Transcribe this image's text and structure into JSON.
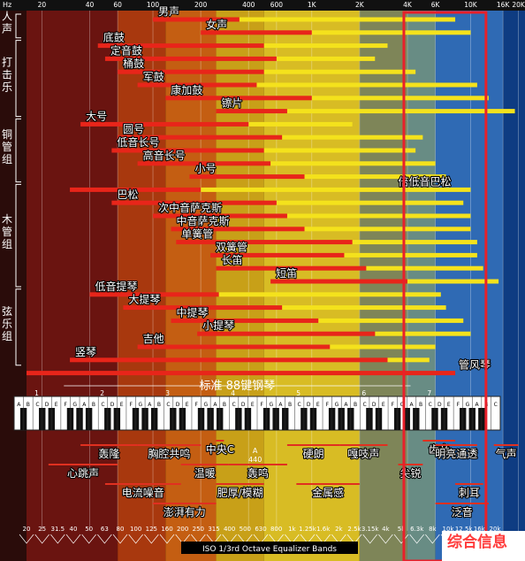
{
  "watermark": "综合信息",
  "chart_data": {
    "type": "range-bar",
    "unit_label": "Hz",
    "x_scale": "log",
    "xlim": [
      16,
      22000
    ],
    "top_ticks": [
      {
        "label": "20",
        "value": 20
      },
      {
        "label": "40",
        "value": 40
      },
      {
        "label": "60",
        "value": 60
      },
      {
        "label": "100",
        "value": 100
      },
      {
        "label": "200",
        "value": 200
      },
      {
        "label": "400",
        "value": 400
      },
      {
        "label": "600",
        "value": 600
      },
      {
        "label": "1K",
        "value": 1000
      },
      {
        "label": "2K",
        "value": 2000
      },
      {
        "label": "4K",
        "value": 4000
      },
      {
        "label": "6K",
        "value": 6000
      },
      {
        "label": "10K",
        "value": 10000
      },
      {
        "label": "16K",
        "value": 16000
      },
      {
        "label": "20K",
        "value": 20000
      }
    ],
    "bands": [
      {
        "from": 16,
        "to": 60,
        "color": "#6a1410"
      },
      {
        "from": 60,
        "to": 120,
        "color": "#a8380e"
      },
      {
        "from": 120,
        "to": 250,
        "color": "#c45e12"
      },
      {
        "from": 250,
        "to": 500,
        "color": "#c8a018"
      },
      {
        "from": 500,
        "to": 2000,
        "color": "#d8bc24"
      },
      {
        "from": 2000,
        "to": 4000,
        "color": "#7e8558"
      },
      {
        "from": 4000,
        "to": 6000,
        "color": "#688c84"
      },
      {
        "from": 6000,
        "to": 16000,
        "color": "#2f6ab4"
      },
      {
        "from": 16000,
        "to": 22000,
        "color": "#0e3c82"
      }
    ],
    "groups": [
      {
        "label": "人声",
        "row_from": 0,
        "row_to": 1
      },
      {
        "label": "打击乐",
        "row_from": 2,
        "row_to": 7
      },
      {
        "label": "铜管组",
        "row_from": 8,
        "row_to": 12
      },
      {
        "label": "木管组",
        "row_from": 13,
        "row_to": 20
      },
      {
        "label": "弦乐组",
        "row_from": 21,
        "row_to": 26
      }
    ],
    "series": [
      {
        "label": "男声",
        "low": 100,
        "fund_high": 350,
        "harm_high": 8000
      },
      {
        "label": "女声",
        "low": 200,
        "fund_high": 1000,
        "harm_high": 10000
      },
      {
        "label": "底鼓",
        "low": 45,
        "fund_high": 500,
        "harm_high": 3000
      },
      {
        "label": "定音鼓",
        "low": 50,
        "fund_high": 600,
        "harm_high": 2500
      },
      {
        "label": "桶鼓",
        "low": 60,
        "fund_high": 500,
        "harm_high": 4500
      },
      {
        "label": "军鼓",
        "low": 80,
        "fund_high": 450,
        "harm_high": 11000
      },
      {
        "label": "康加鼓",
        "low": 120,
        "fund_high": 1000,
        "harm_high": 13000
      },
      {
        "label": "镲片",
        "low": 250,
        "fund_high": 700,
        "harm_high": 19000
      },
      {
        "label": "大号",
        "low": 35,
        "fund_high": 400,
        "harm_high": 1800
      },
      {
        "label": "圆号",
        "low": 60,
        "fund_high": 650,
        "harm_high": 5000
      },
      {
        "label": "低音长号",
        "low": 55,
        "fund_high": 500,
        "harm_high": 4500
      },
      {
        "label": "高音长号",
        "low": 80,
        "fund_high": 550,
        "harm_high": 6000
      },
      {
        "label": "小号",
        "low": 170,
        "fund_high": 900,
        "harm_high": 7000
      },
      {
        "label": "倍低音巴松",
        "low": 30,
        "fund_high": 200,
        "harm_high": 10000
      },
      {
        "label": "巴松",
        "low": 55,
        "fund_high": 600,
        "harm_high": 9000
      },
      {
        "label": "次中音萨克斯",
        "low": 100,
        "fund_high": 700,
        "harm_high": 10000
      },
      {
        "label": "中音萨克斯",
        "low": 130,
        "fund_high": 900,
        "harm_high": 10000
      },
      {
        "label": "单簧管",
        "low": 140,
        "fund_high": 1800,
        "harm_high": 11000
      },
      {
        "label": "双簧管",
        "low": 230,
        "fund_high": 1600,
        "harm_high": 11000
      },
      {
        "label": "长笛",
        "low": 250,
        "fund_high": 2200,
        "harm_high": 12000
      },
      {
        "label": "短笛",
        "low": 550,
        "fund_high": 4000,
        "harm_high": 15000
      },
      {
        "label": "低音提琴",
        "low": 40,
        "fund_high": 260,
        "harm_high": 6500
      },
      {
        "label": "大提琴",
        "low": 65,
        "fund_high": 650,
        "harm_high": 7000
      },
      {
        "label": "中提琴",
        "low": 130,
        "fund_high": 1100,
        "harm_high": 9000
      },
      {
        "label": "小提琴",
        "low": 190,
        "fund_high": 2500,
        "harm_high": 10000
      },
      {
        "label": "吉他",
        "low": 80,
        "fund_high": 1300,
        "harm_high": 6000
      },
      {
        "label": "竖琴",
        "low": 30,
        "fund_high": 3000,
        "harm_high": 5500
      },
      {
        "label": "管风琴",
        "low": 16,
        "fund_high": 8000,
        "harm_high": 8000
      }
    ],
    "piano": {
      "title": "标准 88键钢琴",
      "low": 27.5,
      "high": 4186,
      "octave_numbers": [
        "1",
        "2",
        "3",
        "4",
        "5",
        "6",
        "7"
      ],
      "key_letters": [
        "C",
        "D",
        "E",
        "F",
        "G",
        "A",
        "B"
      ],
      "middle_c_label": "中央C",
      "a440_label_top": "A",
      "a440_label_bottom": "440"
    },
    "characteristics": [
      {
        "label": "轰隆",
        "from": 35,
        "to": 80,
        "level": 0
      },
      {
        "label": "心跳声",
        "from": 22,
        "to": 60,
        "level": 1
      },
      {
        "label": "胸腔共鸣",
        "from": 80,
        "to": 200,
        "level": 0
      },
      {
        "label": "电流噪音",
        "from": 50,
        "to": 150,
        "level": 2
      },
      {
        "label": "温暖",
        "from": 150,
        "to": 300,
        "level": 1
      },
      {
        "label": "澎湃有力",
        "from": 100,
        "to": 250,
        "level": 3
      },
      {
        "label": "中央C",
        "from": 250,
        "to": 280,
        "level": -1
      },
      {
        "label": "肥厚/模糊",
        "from": 250,
        "to": 500,
        "level": 2
      },
      {
        "label": "轰鸣",
        "from": 300,
        "to": 700,
        "level": 1
      },
      {
        "label": "硬朗",
        "from": 700,
        "to": 1500,
        "level": 0
      },
      {
        "label": "金属感",
        "from": 800,
        "to": 2000,
        "level": 2
      },
      {
        "label": "嘎吱声",
        "from": 1500,
        "to": 3000,
        "level": 0
      },
      {
        "label": "尖锐",
        "from": 3500,
        "to": 5000,
        "level": 1
      },
      {
        "label": "齿音",
        "from": 5000,
        "to": 8000,
        "level": -1
      },
      {
        "label": "明亮通透",
        "from": 6000,
        "to": 11000,
        "level": 0
      },
      {
        "label": "刺耳",
        "from": 8000,
        "to": 12000,
        "level": 2
      },
      {
        "label": "泛音",
        "from": 6000,
        "to": 13000,
        "level": 3
      },
      {
        "label": "气声",
        "from": 14000,
        "to": 20000,
        "level": 0
      }
    ],
    "iso_bands": [
      "20",
      "25",
      "31.5",
      "40",
      "50",
      "63",
      "80",
      "100",
      "125",
      "160",
      "200",
      "250",
      "315",
      "400",
      "500",
      "630",
      "800",
      "1k",
      "1.25k",
      "1.6k",
      "2k",
      "2.5k",
      "3.15k",
      "4k",
      "5k",
      "6.3k",
      "8k",
      "10k",
      "12.5k",
      "16k",
      "20k"
    ],
    "iso_title": "ISO 1/3rd Octave Equalizer Bands",
    "highlight": {
      "from": 3800,
      "to": 12500
    }
  }
}
